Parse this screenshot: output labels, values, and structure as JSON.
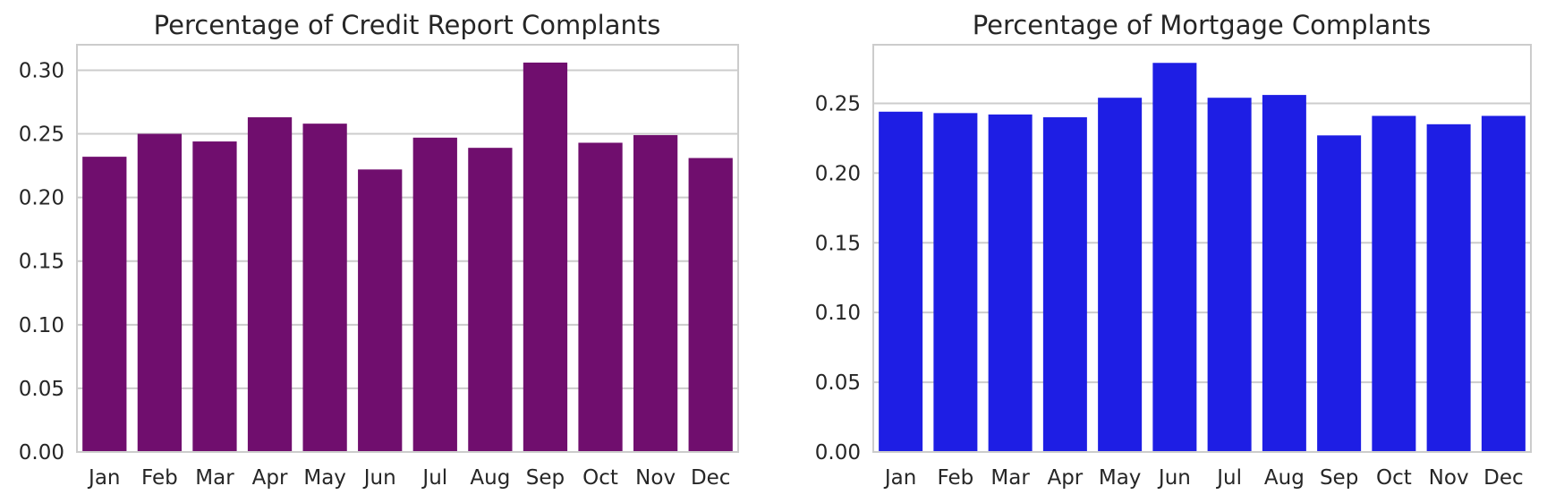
{
  "chart_data": [
    {
      "type": "bar",
      "title": "Percentage of Credit Report Complants",
      "xlabel": "",
      "ylabel": "",
      "categories": [
        "Jan",
        "Feb",
        "Mar",
        "Apr",
        "May",
        "Jun",
        "Jul",
        "Aug",
        "Sep",
        "Oct",
        "Nov",
        "Dec"
      ],
      "values": [
        0.232,
        0.25,
        0.244,
        0.263,
        0.258,
        0.222,
        0.247,
        0.239,
        0.306,
        0.243,
        0.249,
        0.231
      ],
      "ylim": [
        0,
        0.32
      ],
      "yticks": [
        "0.00",
        "0.05",
        "0.10",
        "0.15",
        "0.20",
        "0.25",
        "0.30"
      ],
      "grid": "horizontal",
      "color": "#700e6e"
    },
    {
      "type": "bar",
      "title": "Percentage of Mortgage Complants",
      "xlabel": "",
      "ylabel": "",
      "categories": [
        "Jan",
        "Feb",
        "Mar",
        "Apr",
        "May",
        "Jun",
        "Jul",
        "Aug",
        "Sep",
        "Oct",
        "Nov",
        "Dec"
      ],
      "values": [
        0.244,
        0.243,
        0.242,
        0.24,
        0.254,
        0.279,
        0.254,
        0.256,
        0.227,
        0.241,
        0.235,
        0.241
      ],
      "ylim": [
        0,
        0.292
      ],
      "yticks": [
        "0.00",
        "0.05",
        "0.10",
        "0.15",
        "0.20",
        "0.25"
      ],
      "grid": "horizontal",
      "color": "#1e1ee4"
    }
  ]
}
